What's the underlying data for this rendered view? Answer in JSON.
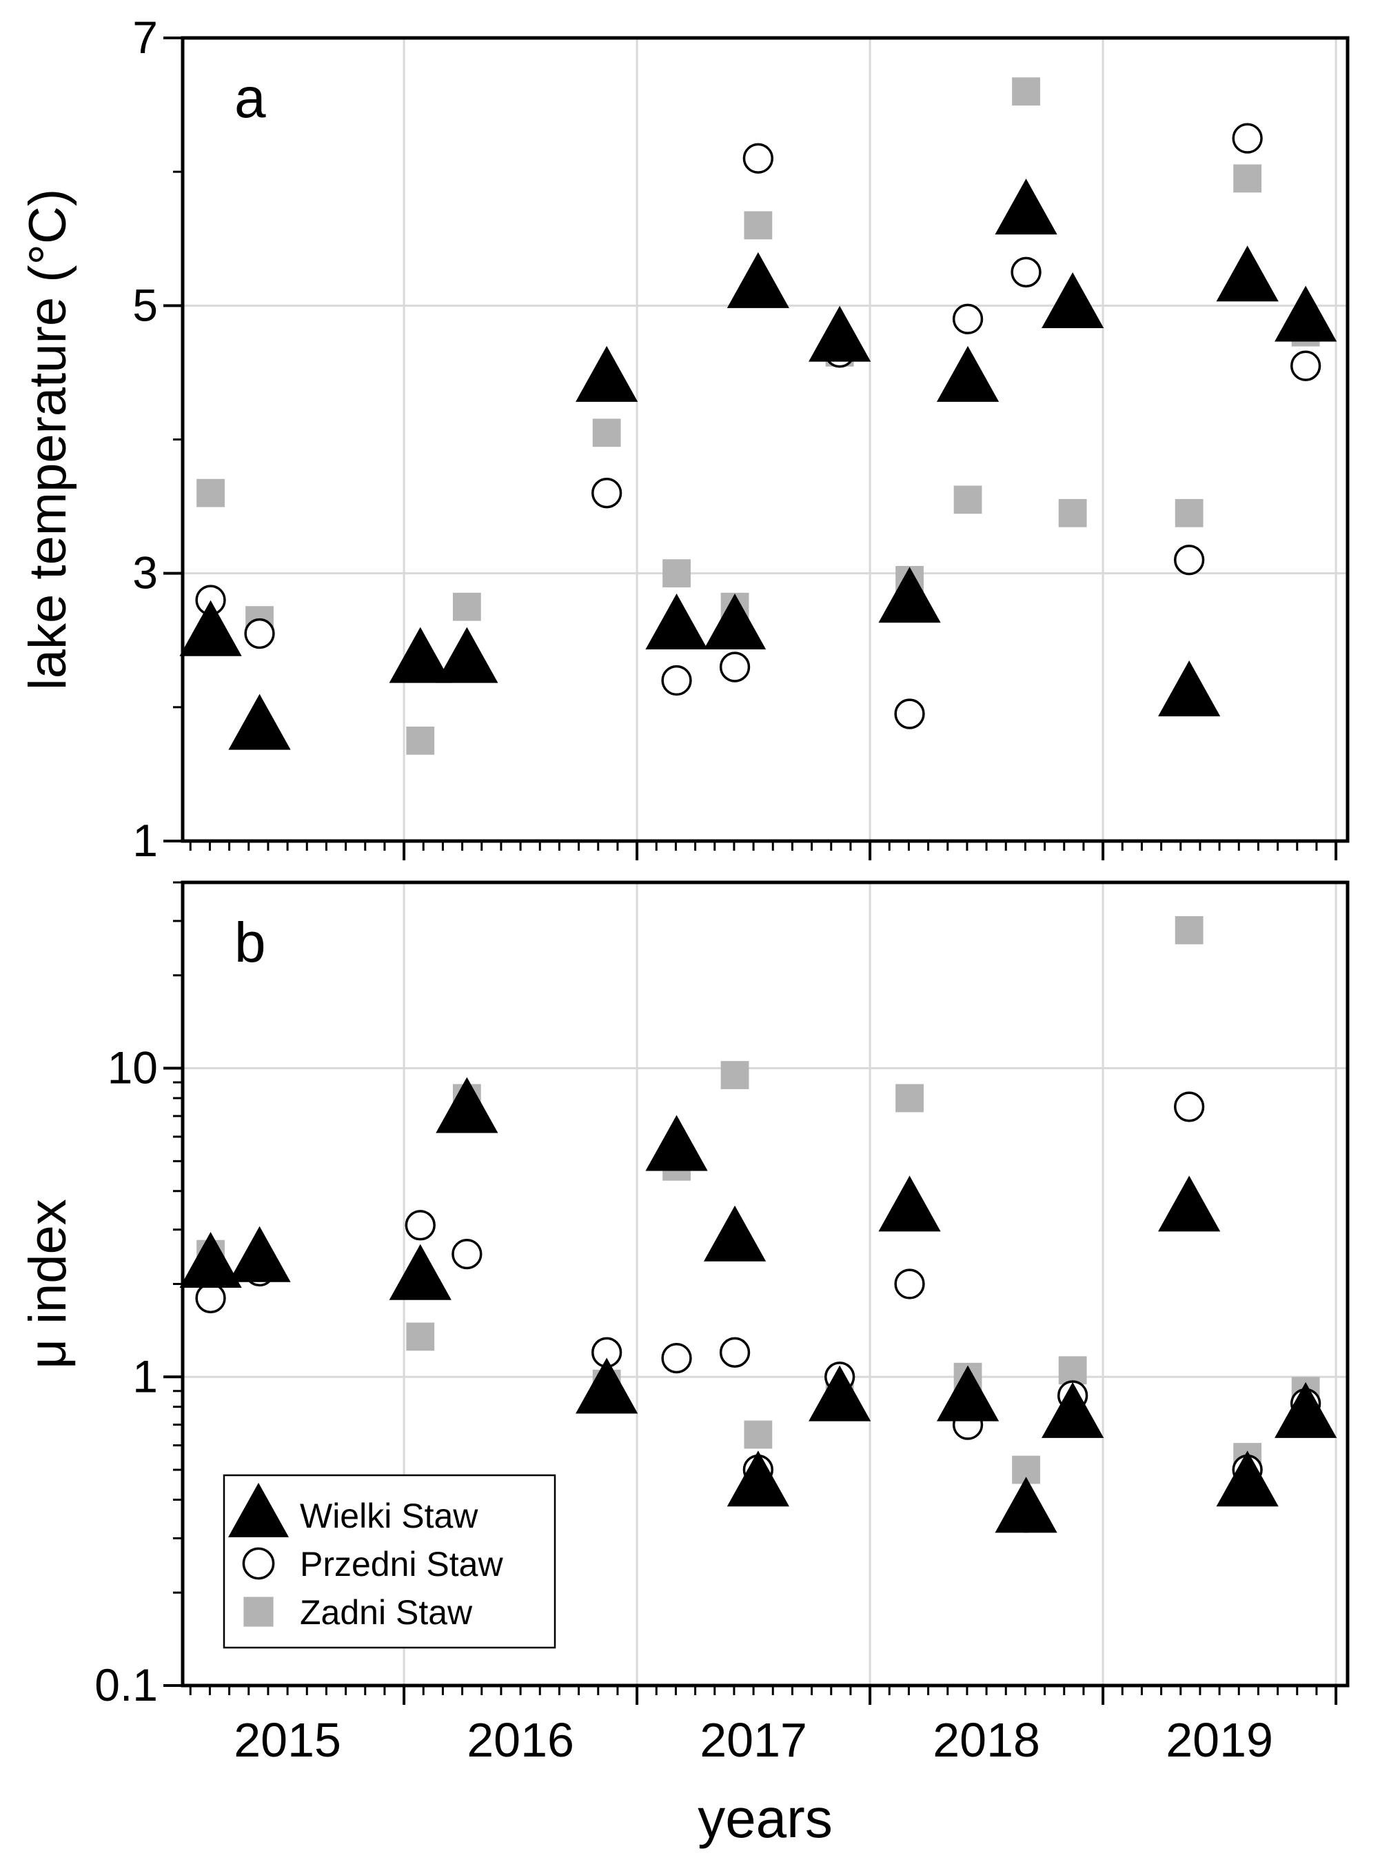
{
  "chart_data": [
    {
      "type": "scatter",
      "panel_label": "a",
      "ylabel": "lake temperature (°C)",
      "yscale": "linear",
      "ylim": [
        1,
        7
      ],
      "yticks": [
        "1",
        "3",
        "5",
        "7"
      ],
      "xlim": [
        2014.55,
        2019.55
      ],
      "grid": true,
      "series": [
        {
          "name": "Wielki Staw",
          "marker": "triangle",
          "color": "#000000",
          "points": [
            [
              2014.67,
              2.55
            ],
            [
              2014.88,
              1.85
            ],
            [
              2015.57,
              2.35
            ],
            [
              2015.77,
              2.35
            ],
            [
              2016.37,
              4.45
            ],
            [
              2016.67,
              2.6
            ],
            [
              2016.92,
              2.6
            ],
            [
              2017.02,
              5.15
            ],
            [
              2017.37,
              4.75
            ],
            [
              2017.67,
              2.8
            ],
            [
              2017.92,
              4.45
            ],
            [
              2018.17,
              5.7
            ],
            [
              2018.37,
              5.0
            ],
            [
              2018.87,
              2.1
            ],
            [
              2019.12,
              5.2
            ],
            [
              2019.37,
              4.9
            ]
          ]
        },
        {
          "name": "Przedni Staw",
          "marker": "circle",
          "color": "#ffffff",
          "points": [
            [
              2014.67,
              2.8
            ],
            [
              2014.88,
              2.55
            ],
            [
              2015.57,
              2.3
            ],
            [
              2015.77,
              2.35
            ],
            [
              2016.37,
              3.6
            ],
            [
              2016.67,
              2.2
            ],
            [
              2016.92,
              2.3
            ],
            [
              2017.02,
              6.1
            ],
            [
              2017.37,
              4.65
            ],
            [
              2017.67,
              1.95
            ],
            [
              2017.92,
              4.9
            ],
            [
              2018.17,
              5.25
            ],
            [
              2018.37,
              4.95
            ],
            [
              2018.87,
              3.1
            ],
            [
              2019.12,
              6.25
            ],
            [
              2019.37,
              4.55
            ]
          ]
        },
        {
          "name": "Zadni Staw",
          "marker": "square",
          "color": "#b3b3b3",
          "points": [
            [
              2014.67,
              3.6
            ],
            [
              2014.88,
              2.65
            ],
            [
              2015.57,
              1.75
            ],
            [
              2015.77,
              2.75
            ],
            [
              2016.37,
              4.05
            ],
            [
              2016.67,
              3.0
            ],
            [
              2016.92,
              2.75
            ],
            [
              2017.02,
              5.6
            ],
            [
              2017.37,
              4.65
            ],
            [
              2017.67,
              2.95
            ],
            [
              2017.92,
              3.55
            ],
            [
              2018.17,
              6.6
            ],
            [
              2018.37,
              3.45
            ],
            [
              2018.87,
              3.45
            ],
            [
              2019.12,
              5.95
            ],
            [
              2019.37,
              4.8
            ]
          ]
        }
      ]
    },
    {
      "type": "scatter",
      "panel_label": "b",
      "ylabel": "μ index",
      "yscale": "log",
      "ylim": [
        0.1,
        40
      ],
      "yticks": [
        "0.1",
        "1",
        "10"
      ],
      "xlim": [
        2014.55,
        2019.55
      ],
      "xticks": [
        "2015",
        "2016",
        "2017",
        "2018",
        "2019"
      ],
      "xlabel": "years",
      "grid": true,
      "legend": {
        "position": "bottom-left",
        "entries": [
          "Wielki Staw",
          "Przedni Staw",
          "Zadni Staw"
        ]
      },
      "series": [
        {
          "name": "Wielki Staw",
          "marker": "triangle",
          "color": "#000000",
          "points": [
            [
              2014.67,
              2.3
            ],
            [
              2014.88,
              2.4
            ],
            [
              2015.57,
              2.1
            ],
            [
              2015.77,
              7.3
            ],
            [
              2016.37,
              0.9
            ],
            [
              2016.67,
              5.5
            ],
            [
              2016.92,
              2.8
            ],
            [
              2017.02,
              0.45
            ],
            [
              2017.37,
              0.85
            ],
            [
              2017.67,
              3.5
            ],
            [
              2017.92,
              0.85
            ],
            [
              2018.17,
              0.37
            ],
            [
              2018.37,
              0.75
            ],
            [
              2018.87,
              3.5
            ],
            [
              2019.12,
              0.45
            ],
            [
              2019.37,
              0.75
            ]
          ]
        },
        {
          "name": "Przedni Staw",
          "marker": "circle",
          "color": "#ffffff",
          "points": [
            [
              2014.67,
              1.8
            ],
            [
              2014.88,
              2.2
            ],
            [
              2015.57,
              3.1
            ],
            [
              2015.77,
              2.5
            ],
            [
              2016.37,
              1.2
            ],
            [
              2016.67,
              1.15
            ],
            [
              2016.92,
              1.2
            ],
            [
              2017.02,
              0.5
            ],
            [
              2017.37,
              1.0
            ],
            [
              2017.67,
              2.0
            ],
            [
              2017.92,
              0.7
            ],
            [
              2018.17,
              0.35
            ],
            [
              2018.37,
              0.87
            ],
            [
              2018.87,
              7.5
            ],
            [
              2019.12,
              0.5
            ],
            [
              2019.37,
              0.82
            ]
          ]
        },
        {
          "name": "Zadni Staw",
          "marker": "square",
          "color": "#b3b3b3",
          "points": [
            [
              2014.67,
              2.5
            ],
            [
              2014.88,
              2.3
            ],
            [
              2015.57,
              1.35
            ],
            [
              2015.77,
              8.0
            ],
            [
              2016.37,
              0.95
            ],
            [
              2016.67,
              4.8
            ],
            [
              2016.92,
              9.5
            ],
            [
              2017.02,
              0.65
            ],
            [
              2017.37,
              0.9
            ],
            [
              2017.67,
              8.0
            ],
            [
              2017.92,
              1.0
            ],
            [
              2018.17,
              0.5
            ],
            [
              2018.37,
              1.05
            ],
            [
              2018.87,
              28.0
            ],
            [
              2019.12,
              0.55
            ],
            [
              2019.37,
              0.9
            ]
          ]
        }
      ]
    }
  ]
}
